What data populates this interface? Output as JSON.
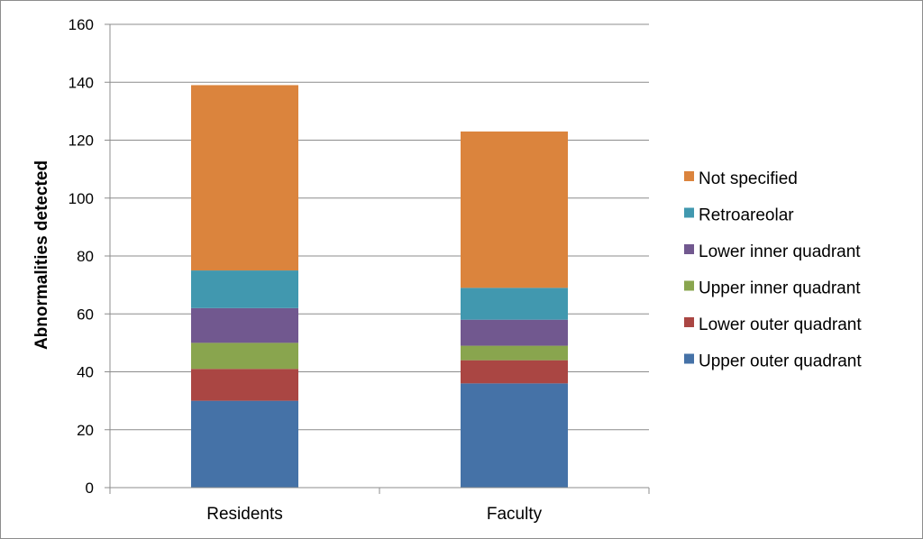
{
  "chart_data": {
    "type": "bar",
    "stacked": true,
    "categories": [
      "Residents",
      "Faculty"
    ],
    "series": [
      {
        "name": "Upper outer quadrant",
        "values": [
          30,
          36
        ],
        "color": "#4572A7"
      },
      {
        "name": "Lower outer quadrant",
        "values": [
          11,
          8
        ],
        "color": "#AA4643"
      },
      {
        "name": "Upper inner quadrant",
        "values": [
          9,
          5
        ],
        "color": "#89A54E"
      },
      {
        "name": "Lower inner quadrant",
        "values": [
          12,
          9
        ],
        "color": "#71588F"
      },
      {
        "name": "Retroareolar",
        "values": [
          13,
          11
        ],
        "color": "#4198AF"
      },
      {
        "name": "Not specified",
        "values": [
          64,
          54
        ],
        "color": "#DB843D"
      }
    ],
    "title": "",
    "xlabel": "",
    "ylabel": "Abnormalities detected",
    "ylim": [
      0,
      160
    ],
    "yticks": [
      0,
      20,
      40,
      60,
      80,
      100,
      120,
      140,
      160
    ],
    "grid": true,
    "legend_position": "right",
    "legend_order": "reversed"
  }
}
